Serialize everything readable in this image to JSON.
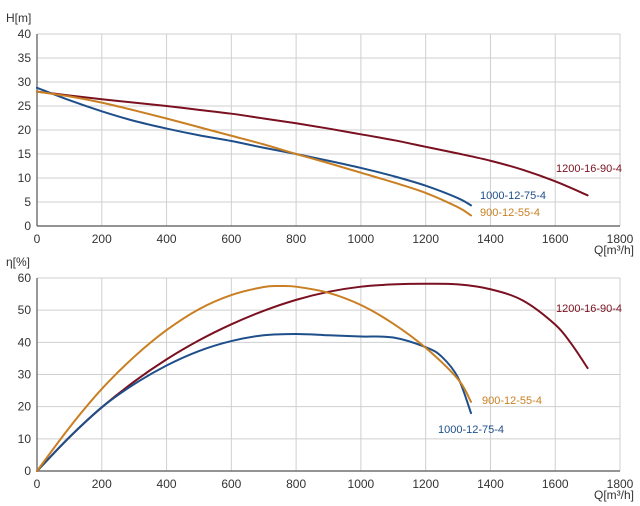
{
  "chart_data": [
    {
      "type": "line",
      "ylabel": "H[m]",
      "xlabel": "Q[m³/h]",
      "xlim": [
        0,
        1800
      ],
      "ylim": [
        0,
        40
      ],
      "xticks": [
        0,
        200,
        400,
        600,
        800,
        1000,
        1200,
        1400,
        1600,
        1800
      ],
      "yticks": [
        0,
        5,
        10,
        15,
        20,
        25,
        30,
        35,
        40
      ],
      "grid": true,
      "series": [
        {
          "name": "1200-16-90-4",
          "color": "#7a1020",
          "x": [
            0,
            100,
            200,
            300,
            400,
            500,
            600,
            700,
            800,
            900,
            1000,
            1100,
            1200,
            1300,
            1400,
            1500,
            1600,
            1700
          ],
          "y": [
            28.0,
            27.2,
            26.4,
            25.7,
            25.0,
            24.2,
            23.4,
            22.4,
            21.4,
            20.3,
            19.1,
            17.9,
            16.5,
            15.1,
            13.6,
            11.7,
            9.3,
            6.4
          ]
        },
        {
          "name": "1000-12-75-4",
          "color": "#1f4f8a",
          "x": [
            0,
            100,
            200,
            300,
            400,
            500,
            600,
            700,
            800,
            900,
            1000,
            1100,
            1200,
            1300,
            1340
          ],
          "y": [
            28.8,
            26.2,
            23.9,
            21.9,
            20.3,
            18.9,
            17.7,
            16.3,
            15.0,
            13.6,
            12.1,
            10.4,
            8.4,
            5.8,
            4.3
          ]
        },
        {
          "name": "900-12-55-4",
          "color": "#c97f22",
          "x": [
            0,
            100,
            200,
            300,
            400,
            500,
            600,
            700,
            800,
            900,
            1000,
            1100,
            1200,
            1300,
            1340
          ],
          "y": [
            28.0,
            27.0,
            25.7,
            24.1,
            22.4,
            20.6,
            18.8,
            17.0,
            15.0,
            13.1,
            11.1,
            9.1,
            6.9,
            3.9,
            2.2
          ]
        }
      ]
    },
    {
      "type": "line",
      "ylabel": "η[%]",
      "xlabel": "Q[m³/h]",
      "xlim": [
        0,
        1800
      ],
      "ylim": [
        0,
        60
      ],
      "xticks": [
        0,
        200,
        400,
        600,
        800,
        1000,
        1200,
        1400,
        1600,
        1800
      ],
      "yticks": [
        0,
        10,
        20,
        30,
        40,
        50,
        60
      ],
      "grid": true,
      "series": [
        {
          "name": "1200-16-90-4",
          "color": "#7a1020",
          "x": [
            0,
            100,
            200,
            300,
            400,
            500,
            600,
            700,
            800,
            900,
            1000,
            1100,
            1200,
            1300,
            1400,
            1500,
            1600,
            1650,
            1700
          ],
          "y": [
            0,
            10.5,
            19.8,
            27.8,
            34.7,
            40.6,
            45.6,
            49.8,
            53.2,
            55.7,
            57.3,
            58.0,
            58.2,
            58.0,
            56.5,
            53.0,
            45.5,
            39.5,
            32.0
          ]
        },
        {
          "name": "1000-12-75-4",
          "color": "#1f4f8a",
          "x": [
            0,
            100,
            200,
            300,
            400,
            500,
            600,
            700,
            800,
            900,
            1000,
            1100,
            1200,
            1250,
            1300,
            1340
          ],
          "y": [
            0,
            10.5,
            19.8,
            27.0,
            32.8,
            37.3,
            40.4,
            42.2,
            42.6,
            42.2,
            41.8,
            41.5,
            38.5,
            35.5,
            29.0,
            18.0
          ]
        },
        {
          "name": "900-12-55-4",
          "color": "#c97f22",
          "x": [
            0,
            100,
            200,
            300,
            400,
            500,
            600,
            700,
            750,
            800,
            900,
            1000,
            1100,
            1200,
            1300,
            1340
          ],
          "y": [
            0,
            13.5,
            25.5,
            35.5,
            43.8,
            50.3,
            54.7,
            57.2,
            57.5,
            57.3,
            55.4,
            51.6,
            45.8,
            38.3,
            28.5,
            21.5
          ]
        }
      ]
    }
  ]
}
